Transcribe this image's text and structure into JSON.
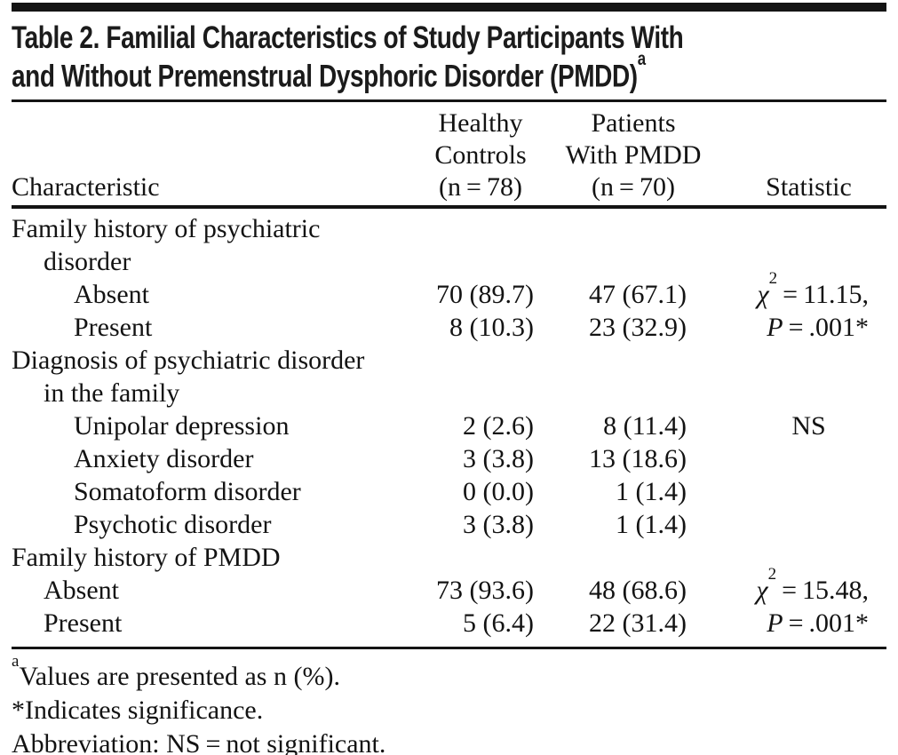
{
  "title": {
    "line1": "Table 2. Familial Characteristics of Study Participants With",
    "line2": "and Without Premenstrual Dysphoric Disorder (PMDD)",
    "footnote_marker": "a"
  },
  "header": {
    "characteristic": "Characteristic",
    "healthy": [
      "Healthy",
      "Controls",
      "(n = 78)"
    ],
    "pmdd": [
      "Patients",
      "With PMDD",
      "(n = 70)"
    ],
    "statistic": "Statistic"
  },
  "rows": [
    {
      "label": "Family history of psychiatric",
      "indent": 0,
      "controls": "",
      "pmdd": "",
      "stat": ""
    },
    {
      "label": "disorder",
      "indent": 1,
      "controls": "",
      "pmdd": "",
      "stat": ""
    },
    {
      "label": "Absent",
      "indent": 2,
      "controls": "70 (89.7)",
      "pmdd": "47 (67.1)",
      "stat": {
        "chi": "χ",
        "sup": "2",
        "rest": " = 11.15,"
      }
    },
    {
      "label": "Present",
      "indent": 2,
      "controls": "8 (10.3)",
      "pmdd": "23 (32.9)",
      "stat": {
        "p": "P",
        "rest": " = .001*"
      }
    },
    {
      "label": "Diagnosis of psychiatric disorder",
      "indent": 0,
      "controls": "",
      "pmdd": "",
      "stat": ""
    },
    {
      "label": "in the family",
      "indent": 1,
      "controls": "",
      "pmdd": "",
      "stat": ""
    },
    {
      "label": "Unipolar depression",
      "indent": 2,
      "controls": "2 (2.6)",
      "pmdd": "8 (11.4)",
      "stat": "NS"
    },
    {
      "label": "Anxiety disorder",
      "indent": 2,
      "controls": "3 (3.8)",
      "pmdd": "13 (18.6)",
      "stat": ""
    },
    {
      "label": "Somatoform disorder",
      "indent": 2,
      "controls": "0 (0.0)",
      "pmdd": "1 (1.4)",
      "stat": ""
    },
    {
      "label": "Psychotic disorder",
      "indent": 2,
      "controls": "3 (3.8)",
      "pmdd": "1 (1.4)",
      "stat": ""
    },
    {
      "label": "Family history of PMDD",
      "indent": 0,
      "controls": "",
      "pmdd": "",
      "stat": ""
    },
    {
      "label": "Absent",
      "indent": 1,
      "controls": "73 (93.6)",
      "pmdd": "48 (68.6)",
      "stat": {
        "chi": "χ",
        "sup": "2",
        "rest": " = 15.48,"
      }
    },
    {
      "label": "Present",
      "indent": 1,
      "controls": "5 (6.4)",
      "pmdd": "22 (31.4)",
      "stat": {
        "p": "P",
        "rest": " = .001*"
      }
    }
  ],
  "footnotes": [
    {
      "marker": "a",
      "text": "Values are presented as n (%)."
    },
    {
      "marker": "",
      "text": "*Indicates significance."
    },
    {
      "marker": "",
      "text": "Abbreviation: NS = not significant."
    }
  ],
  "colors": {
    "text": "#131313",
    "rule": "#141414",
    "background": "#ffffff"
  }
}
